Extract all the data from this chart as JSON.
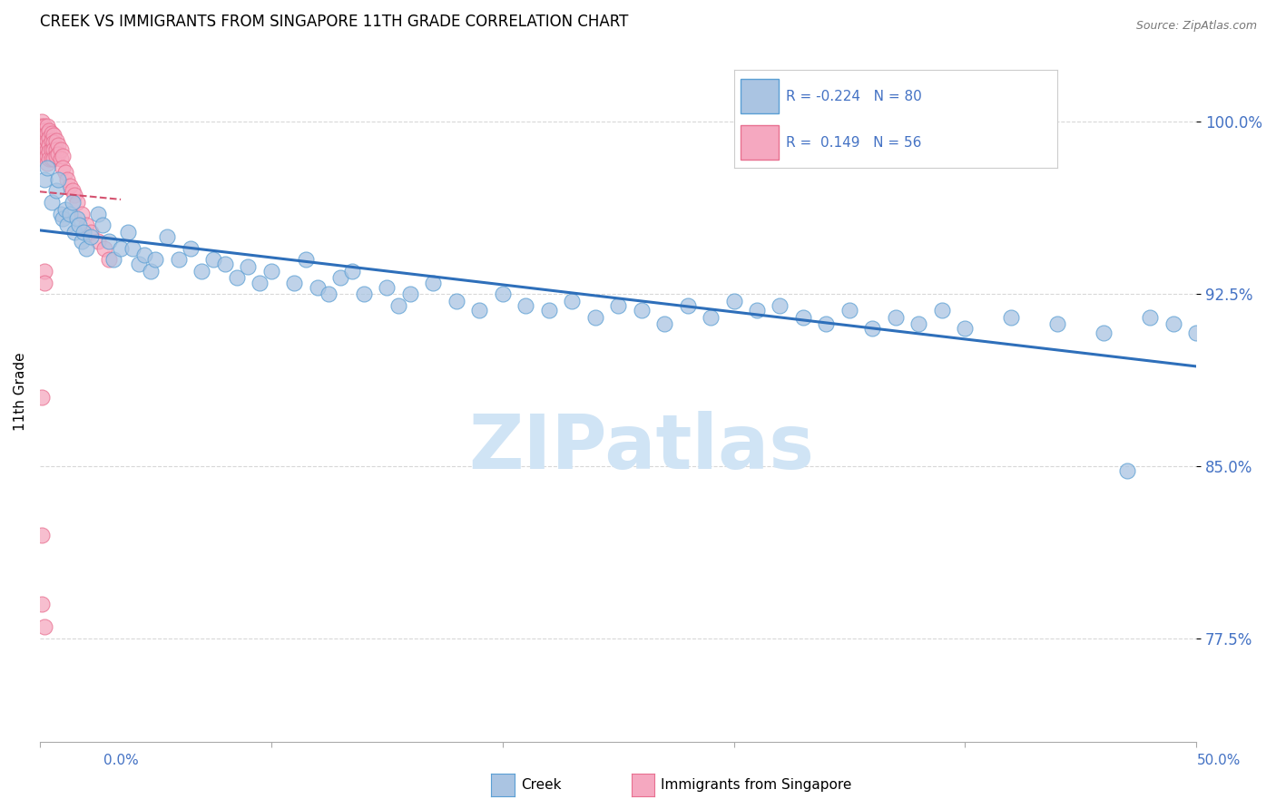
{
  "title": "CREEK VS IMMIGRANTS FROM SINGAPORE 11TH GRADE CORRELATION CHART",
  "source": "Source: ZipAtlas.com",
  "ylabel": "11th Grade",
  "ytick_values": [
    0.775,
    0.85,
    0.925,
    1.0
  ],
  "ytick_labels": [
    "77.5%",
    "85.0%",
    "92.5%",
    "100.0%"
  ],
  "xlim": [
    0.0,
    0.5
  ],
  "ylim": [
    0.73,
    1.035
  ],
  "legend_creek_R": "-0.224",
  "legend_creek_N": "80",
  "legend_sing_R": "0.149",
  "legend_sing_N": "56",
  "creek_color": "#aac4e2",
  "singapore_color": "#f5a8c0",
  "creek_edge_color": "#5a9fd4",
  "singapore_edge_color": "#e87090",
  "creek_line_color": "#2e6fba",
  "singapore_line_color": "#d04060",
  "watermark_color": "#d0e4f5",
  "grid_color": "#d8d8d8",
  "ytick_color": "#4472c4",
  "xtick_color": "#4472c4"
}
